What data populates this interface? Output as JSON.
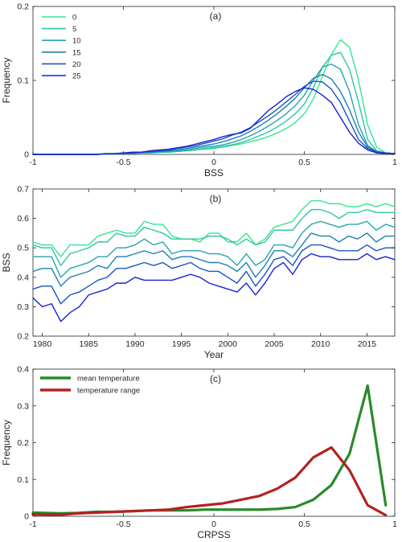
{
  "chart_data": [
    {
      "type": "line",
      "panel_label": "(a)",
      "xlabel": "BSS",
      "ylabel": "Frequency",
      "xlim": [
        -1,
        1
      ],
      "ylim": [
        0,
        0.2
      ],
      "xticks": [
        -1,
        -0.5,
        0,
        0.5,
        1
      ],
      "xtick_labels": [
        "-1",
        "-0.5",
        "0",
        "0.5",
        "1"
      ],
      "yticks": [
        0,
        0.1,
        0.2
      ],
      "ytick_labels": [
        "0",
        "0.1",
        "0.2"
      ],
      "grid": false,
      "legend_position": "top-left",
      "x": [
        -1,
        -0.95,
        -0.9,
        -0.85,
        -0.8,
        -0.75,
        -0.7,
        -0.65,
        -0.6,
        -0.55,
        -0.5,
        -0.45,
        -0.4,
        -0.35,
        -0.3,
        -0.25,
        -0.2,
        -0.15,
        -0.1,
        -0.05,
        0,
        0.05,
        0.1,
        0.15,
        0.2,
        0.25,
        0.3,
        0.35,
        0.4,
        0.45,
        0.5,
        0.55,
        0.6,
        0.65,
        0.7,
        0.75,
        0.8,
        0.85,
        0.9,
        0.95,
        1
      ],
      "series": [
        {
          "name": "0",
          "color": "#36e58e",
          "values": [
            0,
            0,
            0,
            0,
            0,
            0,
            0,
            0,
            0.0005,
            0.0005,
            0.001,
            0.0015,
            0.002,
            0.002,
            0.003,
            0.003,
            0.004,
            0.005,
            0.006,
            0.007,
            0.008,
            0.01,
            0.012,
            0.014,
            0.017,
            0.02,
            0.024,
            0.029,
            0.035,
            0.043,
            0.055,
            0.075,
            0.105,
            0.135,
            0.155,
            0.145,
            0.1,
            0.04,
            0.01,
            0.002,
            0.001
          ]
        },
        {
          "name": "5",
          "color": "#2ec6a4",
          "values": [
            0,
            0,
            0,
            0,
            0,
            0,
            0,
            0,
            0.0005,
            0.0005,
            0.001,
            0.0015,
            0.002,
            0.002,
            0.003,
            0.003,
            0.004,
            0.005,
            0.006,
            0.008,
            0.009,
            0.011,
            0.013,
            0.016,
            0.02,
            0.025,
            0.03,
            0.037,
            0.045,
            0.055,
            0.068,
            0.09,
            0.118,
            0.134,
            0.138,
            0.115,
            0.07,
            0.02,
            0.005,
            0.002,
            0.001
          ]
        },
        {
          "name": "10",
          "color": "#25a3b1",
          "values": [
            0,
            0,
            0,
            0,
            0,
            0,
            0,
            0,
            0.0005,
            0.001,
            0.001,
            0.0015,
            0.002,
            0.003,
            0.003,
            0.004,
            0.005,
            0.006,
            0.008,
            0.01,
            0.011,
            0.013,
            0.016,
            0.02,
            0.025,
            0.031,
            0.038,
            0.046,
            0.055,
            0.066,
            0.08,
            0.1,
            0.118,
            0.122,
            0.115,
            0.085,
            0.04,
            0.012,
            0.004,
            0.002,
            0.001
          ]
        },
        {
          "name": "15",
          "color": "#1e7fb4",
          "values": [
            0,
            0,
            0,
            0,
            0,
            0,
            0,
            0,
            0.0005,
            0.001,
            0.001,
            0.002,
            0.003,
            0.003,
            0.004,
            0.005,
            0.006,
            0.008,
            0.01,
            0.012,
            0.014,
            0.017,
            0.021,
            0.025,
            0.031,
            0.038,
            0.046,
            0.055,
            0.065,
            0.076,
            0.09,
            0.103,
            0.108,
            0.102,
            0.085,
            0.06,
            0.03,
            0.01,
            0.004,
            0.002,
            0.001
          ]
        },
        {
          "name": "20",
          "color": "#1a54bd",
          "values": [
            0,
            0,
            0,
            0,
            0,
            0,
            0,
            0,
            0.001,
            0.001,
            0.002,
            0.002,
            0.003,
            0.004,
            0.005,
            0.006,
            0.008,
            0.01,
            0.012,
            0.015,
            0.018,
            0.021,
            0.026,
            0.03,
            0.036,
            0.044,
            0.052,
            0.061,
            0.071,
            0.081,
            0.092,
            0.099,
            0.098,
            0.088,
            0.07,
            0.045,
            0.02,
            0.008,
            0.003,
            0.002,
            0.001
          ]
        },
        {
          "name": "25",
          "color": "#1a1fd6",
          "values": [
            0,
            0,
            0,
            0,
            0,
            0,
            0,
            0,
            0.001,
            0.001,
            0.002,
            0.003,
            0.003,
            0.005,
            0.006,
            0.007,
            0.009,
            0.011,
            0.014,
            0.017,
            0.02,
            0.024,
            0.027,
            0.029,
            0.035,
            0.047,
            0.059,
            0.068,
            0.078,
            0.085,
            0.09,
            0.088,
            0.08,
            0.07,
            0.05,
            0.03,
            0.015,
            0.006,
            0.002,
            0.001,
            0.001
          ]
        }
      ]
    },
    {
      "type": "line",
      "panel_label": "(b)",
      "xlabel": "Year",
      "ylabel": "BSS",
      "xlim": [
        1979,
        2018
      ],
      "ylim": [
        0.2,
        0.7
      ],
      "xticks": [
        1980,
        1985,
        1990,
        1995,
        2000,
        2005,
        2010,
        2015
      ],
      "xtick_labels": [
        "1980",
        "1985",
        "1990",
        "1995",
        "2000",
        "2005",
        "2010",
        "2015"
      ],
      "yticks": [
        0.2,
        0.3,
        0.4,
        0.5,
        0.6,
        0.7
      ],
      "ytick_labels": [
        "0.2",
        "0.3",
        "0.4",
        "0.5",
        "0.6",
        "0.7"
      ],
      "grid": false,
      "x": [
        1979,
        1980,
        1981,
        1982,
        1983,
        1984,
        1985,
        1986,
        1987,
        1988,
        1989,
        1990,
        1991,
        1992,
        1993,
        1994,
        1995,
        1996,
        1997,
        1998,
        1999,
        2000,
        2001,
        2002,
        2003,
        2004,
        2005,
        2006,
        2007,
        2008,
        2009,
        2010,
        2011,
        2012,
        2013,
        2014,
        2015,
        2016,
        2017,
        2018
      ],
      "series": [
        {
          "name": "0",
          "color": "#36e58e",
          "values": [
            0.52,
            0.51,
            0.51,
            0.47,
            0.51,
            0.51,
            0.51,
            0.54,
            0.55,
            0.56,
            0.55,
            0.55,
            0.59,
            0.58,
            0.58,
            0.54,
            0.53,
            0.53,
            0.52,
            0.55,
            0.55,
            0.52,
            0.52,
            0.55,
            0.51,
            0.53,
            0.57,
            0.58,
            0.59,
            0.63,
            0.66,
            0.66,
            0.65,
            0.65,
            0.64,
            0.64,
            0.65,
            0.64,
            0.65,
            0.64
          ]
        },
        {
          "name": "5",
          "color": "#2ec6a4",
          "values": [
            0.51,
            0.5,
            0.5,
            0.44,
            0.48,
            0.49,
            0.5,
            0.52,
            0.52,
            0.55,
            0.54,
            0.54,
            0.57,
            0.56,
            0.55,
            0.53,
            0.53,
            0.53,
            0.53,
            0.54,
            0.54,
            0.53,
            0.51,
            0.53,
            0.51,
            0.52,
            0.56,
            0.56,
            0.56,
            0.6,
            0.63,
            0.63,
            0.62,
            0.6,
            0.62,
            0.62,
            0.63,
            0.62,
            0.62,
            0.62
          ]
        },
        {
          "name": "10",
          "color": "#25a3b1",
          "values": [
            0.47,
            0.47,
            0.47,
            0.4,
            0.43,
            0.44,
            0.45,
            0.47,
            0.47,
            0.5,
            0.5,
            0.51,
            0.53,
            0.51,
            0.52,
            0.48,
            0.49,
            0.49,
            0.49,
            0.48,
            0.48,
            0.47,
            0.44,
            0.48,
            0.44,
            0.46,
            0.51,
            0.51,
            0.5,
            0.55,
            0.58,
            0.59,
            0.58,
            0.57,
            0.58,
            0.58,
            0.59,
            0.56,
            0.58,
            0.57
          ]
        },
        {
          "name": "15",
          "color": "#1e7fb4",
          "values": [
            0.42,
            0.43,
            0.43,
            0.37,
            0.4,
            0.41,
            0.42,
            0.44,
            0.43,
            0.47,
            0.47,
            0.48,
            0.49,
            0.48,
            0.49,
            0.46,
            0.47,
            0.47,
            0.46,
            0.45,
            0.45,
            0.44,
            0.42,
            0.45,
            0.4,
            0.44,
            0.49,
            0.49,
            0.47,
            0.51,
            0.55,
            0.54,
            0.54,
            0.52,
            0.54,
            0.53,
            0.55,
            0.52,
            0.54,
            0.54
          ]
        },
        {
          "name": "20",
          "color": "#1a54bd",
          "values": [
            0.36,
            0.37,
            0.37,
            0.31,
            0.34,
            0.35,
            0.37,
            0.39,
            0.4,
            0.43,
            0.43,
            0.44,
            0.45,
            0.44,
            0.45,
            0.43,
            0.44,
            0.45,
            0.43,
            0.42,
            0.42,
            0.4,
            0.38,
            0.42,
            0.37,
            0.41,
            0.46,
            0.47,
            0.44,
            0.49,
            0.51,
            0.51,
            0.5,
            0.49,
            0.49,
            0.49,
            0.51,
            0.49,
            0.5,
            0.5
          ]
        },
        {
          "name": "25",
          "color": "#1a1fd6",
          "values": [
            0.33,
            0.3,
            0.31,
            0.25,
            0.28,
            0.3,
            0.34,
            0.35,
            0.36,
            0.38,
            0.38,
            0.4,
            0.39,
            0.39,
            0.39,
            0.39,
            0.4,
            0.41,
            0.4,
            0.38,
            0.37,
            0.36,
            0.35,
            0.38,
            0.34,
            0.38,
            0.43,
            0.45,
            0.41,
            0.46,
            0.48,
            0.47,
            0.47,
            0.46,
            0.46,
            0.46,
            0.48,
            0.46,
            0.47,
            0.46
          ]
        }
      ]
    },
    {
      "type": "line",
      "panel_label": "(c)",
      "xlabel": "CRPSS",
      "ylabel": "Frequency",
      "xlim": [
        -1,
        1
      ],
      "ylim": [
        0,
        0.4
      ],
      "xticks": [
        -1,
        -0.5,
        0,
        0.5,
        1
      ],
      "xtick_labels": [
        "-1",
        "-0.5",
        "0",
        "0.5",
        "1"
      ],
      "yticks": [
        0,
        0.1,
        0.2,
        0.3,
        0.4
      ],
      "ytick_labels": [
        "0",
        "0.1",
        "0.2",
        "0.3",
        "0.4"
      ],
      "grid": false,
      "legend_position": "top-left",
      "x": [
        -1,
        -0.85,
        -0.75,
        -0.65,
        -0.55,
        -0.45,
        -0.35,
        -0.25,
        -0.15,
        -0.05,
        0.05,
        0.15,
        0.25,
        0.35,
        0.45,
        0.55,
        0.65,
        0.75,
        0.85,
        0.95
      ],
      "series": [
        {
          "name": "mean temperature",
          "color": "#2a8a2a",
          "values": [
            0.01,
            0.008,
            0.009,
            0.012,
            0.012,
            0.014,
            0.016,
            0.016,
            0.016,
            0.018,
            0.018,
            0.018,
            0.018,
            0.02,
            0.025,
            0.045,
            0.085,
            0.17,
            0.355,
            0.03
          ]
        },
        {
          "name": "temperature range",
          "color": "#b22222",
          "values": [
            0.005,
            0.004,
            0.008,
            0.01,
            0.012,
            0.014,
            0.016,
            0.018,
            0.025,
            0.03,
            0.035,
            0.045,
            0.055,
            0.075,
            0.105,
            0.16,
            0.187,
            0.125,
            0.03,
            0.003
          ]
        }
      ]
    }
  ]
}
